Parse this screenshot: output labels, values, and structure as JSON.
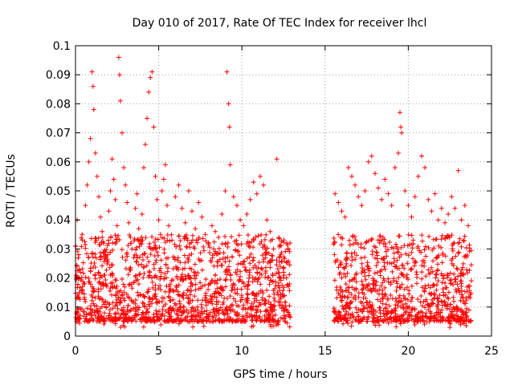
{
  "chart_data": {
    "type": "scatter",
    "title": "Day 010 of 2017, Rate Of TEC Index for receiver lhcl",
    "xlabel": "GPS time / hours",
    "ylabel": "ROTI / TECUs",
    "xlim": [
      0,
      25
    ],
    "ylim": [
      0,
      0.1
    ],
    "xticks": [
      0,
      5,
      10,
      15,
      20,
      25
    ],
    "xtick_labels": [
      "0",
      "5",
      "10",
      "15",
      "20",
      "25"
    ],
    "yticks": [
      0,
      0.01,
      0.02,
      0.03,
      0.04,
      0.05,
      0.06,
      0.07,
      0.08,
      0.09,
      0.1
    ],
    "ytick_labels": [
      "0",
      "0.01",
      "0.02",
      "0.03",
      "0.04",
      "0.05",
      "0.06",
      "0.07",
      "0.08",
      "0.09",
      "0.1"
    ],
    "grid": true,
    "marker": "+",
    "color": "#ff0000",
    "series": [
      {
        "name": "ROTI",
        "points": [
          [
            0.0,
            0.031
          ],
          [
            0.1,
            0.04
          ],
          [
            0.2,
            0.028
          ],
          [
            0.3,
            0.022
          ],
          [
            0.4,
            0.035
          ],
          [
            0.5,
            0.018
          ],
          [
            0.6,
            0.045
          ],
          [
            0.7,
            0.052
          ],
          [
            0.8,
            0.06
          ],
          [
            0.9,
            0.068
          ],
          [
            1.0,
            0.091
          ],
          [
            1.05,
            0.086
          ],
          [
            1.1,
            0.078
          ],
          [
            1.2,
            0.063
          ],
          [
            1.3,
            0.055
          ],
          [
            1.4,
            0.048
          ],
          [
            1.5,
            0.041
          ],
          [
            1.6,
            0.036
          ],
          [
            1.7,
            0.032
          ],
          [
            1.8,
            0.029
          ],
          [
            1.9,
            0.026
          ],
          [
            2.0,
            0.043
          ],
          [
            2.1,
            0.05
          ],
          [
            2.2,
            0.061
          ],
          [
            2.3,
            0.054
          ],
          [
            2.4,
            0.047
          ],
          [
            2.5,
            0.038
          ],
          [
            2.6,
            0.096
          ],
          [
            2.65,
            0.09
          ],
          [
            2.7,
            0.081
          ],
          [
            2.8,
            0.07
          ],
          [
            2.9,
            0.058
          ],
          [
            3.0,
            0.052
          ],
          [
            3.1,
            0.046
          ],
          [
            3.2,
            0.039
          ],
          [
            3.3,
            0.034
          ],
          [
            3.4,
            0.03
          ],
          [
            3.5,
            0.027
          ],
          [
            3.6,
            0.044
          ],
          [
            3.7,
            0.049
          ],
          [
            3.8,
            0.037
          ],
          [
            3.9,
            0.033
          ],
          [
            4.0,
            0.042
          ],
          [
            4.1,
            0.058
          ],
          [
            4.2,
            0.066
          ],
          [
            4.3,
            0.075
          ],
          [
            4.4,
            0.084
          ],
          [
            4.5,
            0.089
          ],
          [
            4.6,
            0.091
          ],
          [
            4.7,
            0.072
          ],
          [
            4.8,
            0.055
          ],
          [
            4.9,
            0.047
          ],
          [
            5.0,
            0.04
          ],
          [
            5.1,
            0.035
          ],
          [
            5.2,
            0.05
          ],
          [
            5.3,
            0.054
          ],
          [
            5.4,
            0.059
          ],
          [
            5.5,
            0.045
          ],
          [
            5.6,
            0.038
          ],
          [
            5.8,
            0.033
          ],
          [
            6.0,
            0.048
          ],
          [
            6.2,
            0.052
          ],
          [
            6.4,
            0.044
          ],
          [
            6.6,
            0.039
          ],
          [
            6.8,
            0.05
          ],
          [
            7.0,
            0.043
          ],
          [
            7.2,
            0.037
          ],
          [
            7.4,
            0.046
          ],
          [
            7.6,
            0.041
          ],
          [
            7.8,
            0.035
          ],
          [
            8.0,
            0.032
          ],
          [
            8.2,
            0.038
          ],
          [
            8.4,
            0.036
          ],
          [
            8.6,
            0.034
          ],
          [
            8.8,
            0.042
          ],
          [
            9.0,
            0.05
          ],
          [
            9.1,
            0.091
          ],
          [
            9.2,
            0.08
          ],
          [
            9.25,
            0.072
          ],
          [
            9.3,
            0.059
          ],
          [
            9.5,
            0.048
          ],
          [
            9.7,
            0.045
          ],
          [
            9.9,
            0.04
          ],
          [
            10.1,
            0.038
          ],
          [
            10.3,
            0.042
          ],
          [
            10.5,
            0.047
          ],
          [
            10.7,
            0.053
          ],
          [
            10.9,
            0.049
          ],
          [
            11.1,
            0.055
          ],
          [
            11.3,
            0.052
          ],
          [
            11.5,
            0.04
          ],
          [
            11.7,
            0.036
          ],
          [
            11.9,
            0.03
          ],
          [
            12.1,
            0.061
          ],
          [
            12.3,
            0.024
          ],
          [
            12.5,
            0.02
          ],
          [
            12.7,
            0.032
          ],
          [
            15.6,
            0.049
          ],
          [
            15.8,
            0.046
          ],
          [
            16.0,
            0.043
          ],
          [
            16.2,
            0.041
          ],
          [
            16.4,
            0.058
          ],
          [
            16.6,
            0.055
          ],
          [
            16.8,
            0.052
          ],
          [
            17.0,
            0.048
          ],
          [
            17.2,
            0.045
          ],
          [
            17.4,
            0.05
          ],
          [
            17.6,
            0.06
          ],
          [
            17.8,
            0.062
          ],
          [
            18.0,
            0.056
          ],
          [
            18.2,
            0.051
          ],
          [
            18.4,
            0.047
          ],
          [
            18.6,
            0.054
          ],
          [
            18.8,
            0.049
          ],
          [
            19.0,
            0.045
          ],
          [
            19.2,
            0.058
          ],
          [
            19.4,
            0.063
          ],
          [
            19.5,
            0.077
          ],
          [
            19.55,
            0.072
          ],
          [
            19.6,
            0.07
          ],
          [
            19.8,
            0.05
          ],
          [
            20.0,
            0.045
          ],
          [
            20.2,
            0.041
          ],
          [
            20.4,
            0.048
          ],
          [
            20.6,
            0.055
          ],
          [
            20.8,
            0.062
          ],
          [
            21.0,
            0.058
          ],
          [
            21.2,
            0.047
          ],
          [
            21.4,
            0.043
          ],
          [
            21.6,
            0.049
          ],
          [
            21.8,
            0.04
          ],
          [
            22.0,
            0.044
          ],
          [
            22.2,
            0.039
          ],
          [
            22.4,
            0.042
          ],
          [
            22.6,
            0.048
          ],
          [
            22.8,
            0.044
          ],
          [
            23.0,
            0.057
          ],
          [
            23.2,
            0.04
          ],
          [
            23.4,
            0.045
          ],
          [
            23.6,
            0.038
          ]
        ]
      }
    ],
    "dense_band": {
      "segments": [
        [
          0.0,
          12.9
        ],
        [
          15.5,
          23.8
        ]
      ],
      "typical_range": [
        0.005,
        0.035
      ],
      "min_value": 0.003
    }
  }
}
